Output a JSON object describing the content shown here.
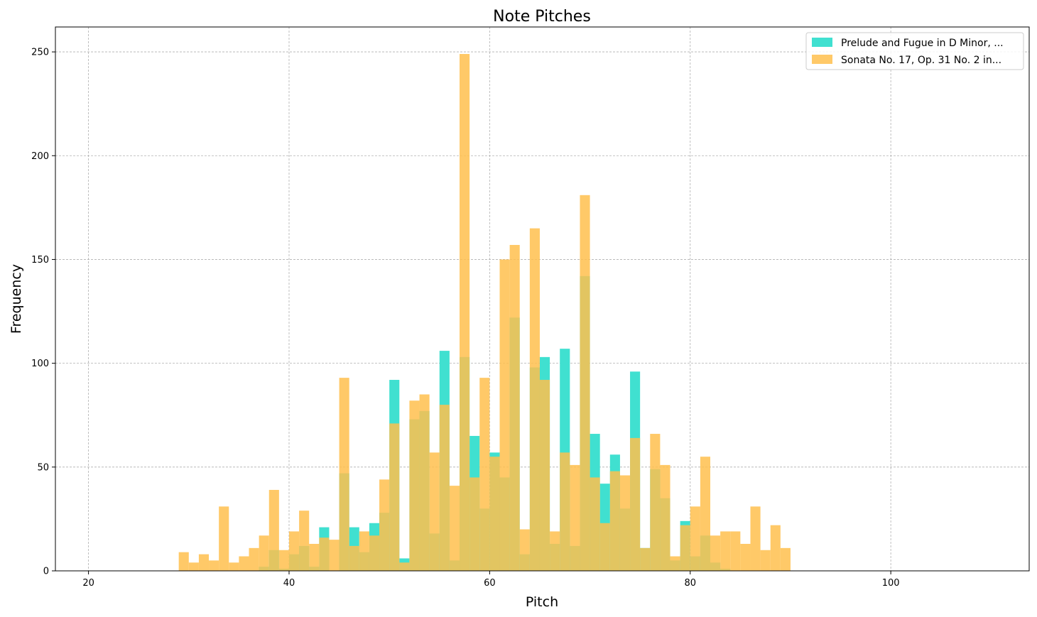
{
  "chart_data": {
    "type": "bar",
    "title": "Note Pitches",
    "xlabel": "Pitch",
    "ylabel": "Frequency",
    "xlim": [
      16.7,
      113.8
    ],
    "ylim": [
      0,
      262
    ],
    "xticks": [
      20,
      40,
      60,
      80,
      100
    ],
    "yticks": [
      0,
      50,
      100,
      150,
      200,
      250
    ],
    "grid": true,
    "legend_position": "top-right",
    "bin_width": 1,
    "series": [
      {
        "name": "Prelude and Fugue in D Minor, ...",
        "color": "#40e0d0",
        "x": [
          37,
          38,
          39,
          40,
          41,
          42,
          43,
          44,
          45,
          46,
          47,
          48,
          49,
          50,
          51,
          52,
          53,
          54,
          55,
          56,
          57,
          58,
          59,
          60,
          61,
          62,
          63,
          64,
          65,
          66,
          67,
          68,
          69,
          70,
          71,
          72,
          73,
          74,
          75,
          76,
          77,
          78,
          79,
          80,
          81,
          82,
          83
        ],
        "values": [
          2,
          10,
          1,
          8,
          12,
          2,
          21,
          0,
          47,
          21,
          9,
          23,
          28,
          92,
          6,
          73,
          77,
          18,
          106,
          5,
          103,
          65,
          30,
          57,
          45,
          122,
          8,
          98,
          103,
          13,
          107,
          12,
          142,
          66,
          42,
          56,
          30,
          96,
          11,
          49,
          35,
          5,
          24,
          7,
          17,
          4,
          1
        ]
      },
      {
        "name": "Sonata No. 17, Op. 31 No. 2 in...",
        "color": "#ffc04d",
        "x": [
          29,
          30,
          31,
          32,
          33,
          34,
          35,
          36,
          37,
          38,
          39,
          40,
          41,
          42,
          43,
          44,
          45,
          46,
          47,
          48,
          49,
          50,
          51,
          52,
          53,
          54,
          55,
          56,
          57,
          58,
          59,
          60,
          61,
          62,
          63,
          64,
          65,
          66,
          67,
          68,
          69,
          70,
          71,
          72,
          73,
          74,
          75,
          76,
          77,
          78,
          79,
          80,
          81,
          82,
          83,
          84,
          85,
          86,
          87,
          88,
          89
        ],
        "values": [
          9,
          4,
          8,
          5,
          31,
          4,
          7,
          11,
          17,
          39,
          10,
          19,
          29,
          13,
          16,
          15,
          93,
          12,
          19,
          17,
          44,
          71,
          4,
          82,
          85,
          57,
          80,
          41,
          249,
          45,
          93,
          55,
          150,
          157,
          20,
          165,
          92,
          19,
          57,
          51,
          181,
          45,
          23,
          48,
          46,
          64,
          11,
          66,
          51,
          7,
          22,
          31,
          55,
          17,
          19,
          19,
          13,
          31,
          10,
          22,
          11
        ]
      }
    ]
  }
}
